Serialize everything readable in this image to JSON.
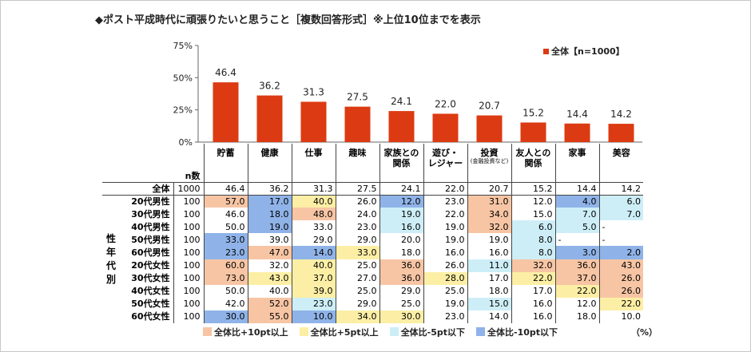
{
  "title": "◆ポスト平成時代に頑張りたいと思うこと［複数回答形式］※上位10位までを表示",
  "chart_data": {
    "type": "bar",
    "categories": [
      "貯蓄",
      "健康",
      "仕事",
      "趣味",
      "家族との関係",
      "遊び・レジャー",
      "投資",
      "友人との関係",
      "家事",
      "美容"
    ],
    "category_lines": [
      [
        "貯蓄"
      ],
      [
        "健康"
      ],
      [
        "仕事"
      ],
      [
        "趣味"
      ],
      [
        "家族との",
        "関係"
      ],
      [
        "遊び・",
        "レジャー"
      ],
      [
        "投資"
      ],
      [
        "友人との",
        "関係"
      ],
      [
        "家事"
      ],
      [
        "美容"
      ]
    ],
    "category_notes": [
      "",
      "",
      "",
      "",
      "",
      "",
      "(金融投資など)",
      "",
      "",
      ""
    ],
    "series": [
      {
        "name": "全体【n=1000】",
        "values": [
          46.4,
          36.2,
          31.3,
          27.5,
          24.1,
          22.0,
          20.7,
          15.2,
          14.4,
          14.2
        ]
      }
    ],
    "value_labels": [
      "46.4",
      "36.2",
      "31.3",
      "27.5",
      "24.1",
      "22.0",
      "20.7",
      "15.2",
      "14.4",
      "14.2"
    ],
    "ylim": [
      0,
      75
    ],
    "yticks": [
      "0%",
      "25%",
      "50%",
      "75%"
    ],
    "ytick_values": [
      0,
      25,
      50,
      75
    ],
    "legend": "top-right",
    "bar_color": "#dc3a12"
  },
  "table": {
    "n_header": "n数",
    "group_label": "性年代別",
    "total_row": {
      "label": "全体",
      "n": "1000",
      "values": [
        "46.4",
        "36.2",
        "31.3",
        "27.5",
        "24.1",
        "22.0",
        "20.7",
        "15.2",
        "14.4",
        "14.2"
      ]
    },
    "rows": [
      {
        "label": "20代男性",
        "n": "100",
        "values": [
          "57.0",
          "17.0",
          "40.0",
          "26.0",
          "12.0",
          "23.0",
          "31.0",
          "12.0",
          "4.0",
          "6.0"
        ],
        "levels": [
          "hi2",
          "lo2",
          "hi1",
          "",
          "lo2",
          "",
          "hi2",
          "",
          "lo2",
          "lo1"
        ]
      },
      {
        "label": "30代男性",
        "n": "100",
        "values": [
          "46.0",
          "18.0",
          "48.0",
          "24.0",
          "19.0",
          "22.0",
          "34.0",
          "15.0",
          "7.0",
          "7.0"
        ],
        "levels": [
          "",
          "lo2",
          "hi2",
          "",
          "lo1",
          "",
          "hi2",
          "",
          "lo1",
          "lo1"
        ]
      },
      {
        "label": "40代男性",
        "n": "100",
        "values": [
          "50.0",
          "19.0",
          "33.0",
          "23.0",
          "16.0",
          "19.0",
          "32.0",
          "6.0",
          "5.0",
          "-"
        ],
        "levels": [
          "",
          "lo2",
          "",
          "",
          "lo1",
          "",
          "hi2",
          "lo1",
          "lo1",
          ""
        ]
      },
      {
        "label": "50代男性",
        "n": "100",
        "values": [
          "33.0",
          "39.0",
          "29.0",
          "29.0",
          "20.0",
          "19.0",
          "19.0",
          "8.0",
          "-",
          "-"
        ],
        "levels": [
          "lo2",
          "",
          "",
          "",
          "",
          "",
          "",
          "lo1",
          "",
          ""
        ]
      },
      {
        "label": "60代男性",
        "n": "100",
        "values": [
          "23.0",
          "47.0",
          "14.0",
          "33.0",
          "18.0",
          "16.0",
          "16.0",
          "8.0",
          "3.0",
          "2.0"
        ],
        "levels": [
          "lo2",
          "hi2",
          "lo2",
          "hi1",
          "",
          "",
          "",
          "lo1",
          "lo2",
          "lo2"
        ]
      },
      {
        "label": "20代女性",
        "n": "100",
        "values": [
          "60.0",
          "32.0",
          "40.0",
          "25.0",
          "36.0",
          "26.0",
          "11.0",
          "32.0",
          "36.0",
          "43.0"
        ],
        "levels": [
          "hi2",
          "",
          "hi1",
          "",
          "hi2",
          "",
          "lo1",
          "hi2",
          "hi2",
          "hi2"
        ]
      },
      {
        "label": "30代女性",
        "n": "100",
        "values": [
          "73.0",
          "43.0",
          "37.0",
          "27.0",
          "36.0",
          "28.0",
          "17.0",
          "22.0",
          "37.0",
          "26.0"
        ],
        "levels": [
          "hi2",
          "hi1",
          "hi1",
          "",
          "hi2",
          "hi1",
          "",
          "hi1",
          "hi2",
          "hi2"
        ]
      },
      {
        "label": "40代女性",
        "n": "100",
        "values": [
          "50.0",
          "40.0",
          "39.0",
          "25.0",
          "29.0",
          "25.0",
          "18.0",
          "17.0",
          "22.0",
          "26.0"
        ],
        "levels": [
          "",
          "",
          "hi1",
          "",
          "",
          "",
          "",
          "",
          "hi1",
          "hi2"
        ]
      },
      {
        "label": "50代女性",
        "n": "100",
        "values": [
          "42.0",
          "52.0",
          "23.0",
          "29.0",
          "25.0",
          "19.0",
          "15.0",
          "16.0",
          "12.0",
          "22.0"
        ],
        "levels": [
          "",
          "hi2",
          "lo1",
          "",
          "",
          "",
          "lo1",
          "",
          "",
          "hi1"
        ]
      },
      {
        "label": "60代女性",
        "n": "100",
        "values": [
          "30.0",
          "55.0",
          "10.0",
          "34.0",
          "30.0",
          "23.0",
          "14.0",
          "16.0",
          "18.0",
          "10.0"
        ],
        "levels": [
          "lo2",
          "hi2",
          "lo2",
          "hi1",
          "hi1",
          "",
          "",
          "",
          "",
          ""
        ]
      }
    ]
  },
  "legend_bottom": [
    {
      "label": "全体比+10pt以上",
      "color": "#f7c5a4"
    },
    {
      "label": "全体比+5pt以上",
      "color": "#fcefa5"
    },
    {
      "label": "全体比-5pt以下",
      "color": "#cdeef7"
    },
    {
      "label": "全体比-10pt以下",
      "color": "#8fb3e8"
    }
  ],
  "unit_note": "（%）"
}
